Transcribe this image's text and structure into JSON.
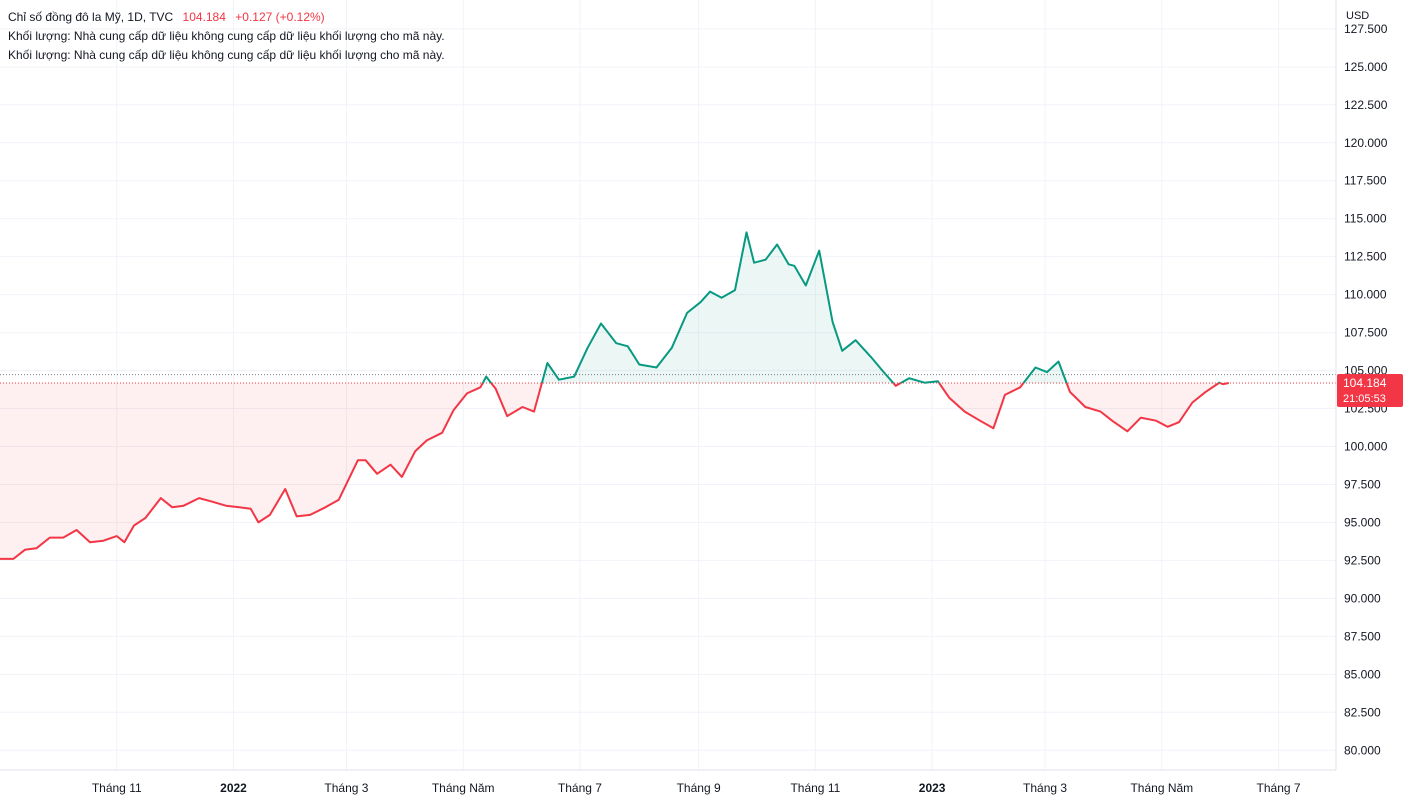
{
  "legend": {
    "symbol_line": "Chỉ số đồng đô la Mỹ, 1D, TVC",
    "last_price": "104.184",
    "change": "+0.127 (+0.12%)",
    "volume_notice_1": "Khối lượng: Nhà cung cấp dữ liệu không cung cấp dữ liệu khối lượng cho mã này.",
    "volume_notice_2": "Khối lượng: Nhà cung cấp dữ liệu không cung cấp dữ liệu khối lượng cho mã này."
  },
  "price_badge": {
    "price": "104.184",
    "countdown": "21:05:53"
  },
  "colors": {
    "up": "#089981",
    "down": "#f23645",
    "grid": "#f0f3fa",
    "badge": "#f23645"
  },
  "chart_data": {
    "type": "area",
    "currency_label": "USD",
    "baseline": 104.184,
    "ylim": [
      78.7,
      129.4
    ],
    "y_ticks": [
      "127.500",
      "125.000",
      "122.500",
      "120.000",
      "117.500",
      "115.000",
      "112.500",
      "110.000",
      "107.500",
      "105.000",
      "102.500",
      "100.000",
      "97.500",
      "95.000",
      "92.500",
      "90.000",
      "87.500",
      "85.000",
      "82.500",
      "80.000"
    ],
    "x_ticks": [
      {
        "label": "Tháng 11",
        "date": "2021-11-01",
        "bold": false
      },
      {
        "label": "2022",
        "date": "2022-01-01",
        "bold": true
      },
      {
        "label": "Tháng 3",
        "date": "2022-03-01",
        "bold": false
      },
      {
        "label": "Tháng Năm",
        "date": "2022-05-01",
        "bold": false
      },
      {
        "label": "Tháng 7",
        "date": "2022-07-01",
        "bold": false
      },
      {
        "label": "Tháng 9",
        "date": "2022-09-01",
        "bold": false
      },
      {
        "label": "Tháng 11",
        "date": "2022-11-01",
        "bold": false
      },
      {
        "label": "2023",
        "date": "2023-01-01",
        "bold": true
      },
      {
        "label": "Tháng 3",
        "date": "2023-03-01",
        "bold": false
      },
      {
        "label": "Tháng Năm",
        "date": "2023-05-01",
        "bold": false
      },
      {
        "label": "Tháng 7",
        "date": "2023-07-01",
        "bold": false
      }
    ],
    "series": [
      {
        "points": [
          [
            "2021-09-01",
            92.6
          ],
          [
            "2021-09-08",
            92.6
          ],
          [
            "2021-09-14",
            93.2
          ],
          [
            "2021-09-20",
            93.3
          ],
          [
            "2021-09-27",
            94.0
          ],
          [
            "2021-10-04",
            94.0
          ],
          [
            "2021-10-11",
            94.5
          ],
          [
            "2021-10-18",
            93.7
          ],
          [
            "2021-10-25",
            93.8
          ],
          [
            "2021-11-01",
            94.1
          ],
          [
            "2021-11-05",
            93.7
          ],
          [
            "2021-11-10",
            94.8
          ],
          [
            "2021-11-16",
            95.3
          ],
          [
            "2021-11-24",
            96.6
          ],
          [
            "2021-11-30",
            96.0
          ],
          [
            "2021-12-06",
            96.1
          ],
          [
            "2021-12-14",
            96.6
          ],
          [
            "2021-12-20",
            96.4
          ],
          [
            "2021-12-28",
            96.1
          ],
          [
            "2022-01-04",
            96.0
          ],
          [
            "2022-01-10",
            95.9
          ],
          [
            "2022-01-14",
            95.0
          ],
          [
            "2022-01-20",
            95.5
          ],
          [
            "2022-01-28",
            97.2
          ],
          [
            "2022-02-03",
            95.4
          ],
          [
            "2022-02-10",
            95.5
          ],
          [
            "2022-02-18",
            96.0
          ],
          [
            "2022-02-25",
            96.5
          ],
          [
            "2022-03-07",
            99.1
          ],
          [
            "2022-03-11",
            99.1
          ],
          [
            "2022-03-17",
            98.2
          ],
          [
            "2022-03-24",
            98.8
          ],
          [
            "2022-03-30",
            98.0
          ],
          [
            "2022-04-06",
            99.7
          ],
          [
            "2022-04-12",
            100.4
          ],
          [
            "2022-04-20",
            100.9
          ],
          [
            "2022-04-26",
            102.4
          ],
          [
            "2022-05-03",
            103.5
          ],
          [
            "2022-05-10",
            103.9
          ],
          [
            "2022-05-13",
            104.6
          ],
          [
            "2022-05-18",
            103.8
          ],
          [
            "2022-05-24",
            102.0
          ],
          [
            "2022-06-01",
            102.6
          ],
          [
            "2022-06-07",
            102.3
          ],
          [
            "2022-06-14",
            105.5
          ],
          [
            "2022-06-20",
            104.4
          ],
          [
            "2022-06-28",
            104.6
          ],
          [
            "2022-07-05",
            106.5
          ],
          [
            "2022-07-12",
            108.1
          ],
          [
            "2022-07-20",
            106.8
          ],
          [
            "2022-07-26",
            106.6
          ],
          [
            "2022-08-01",
            105.4
          ],
          [
            "2022-08-10",
            105.2
          ],
          [
            "2022-08-18",
            106.5
          ],
          [
            "2022-08-26",
            108.8
          ],
          [
            "2022-09-02",
            109.5
          ],
          [
            "2022-09-07",
            110.2
          ],
          [
            "2022-09-13",
            109.8
          ],
          [
            "2022-09-20",
            110.3
          ],
          [
            "2022-09-26",
            114.1
          ],
          [
            "2022-09-30",
            112.1
          ],
          [
            "2022-10-06",
            112.3
          ],
          [
            "2022-10-12",
            113.3
          ],
          [
            "2022-10-18",
            112.0
          ],
          [
            "2022-10-21",
            111.9
          ],
          [
            "2022-10-27",
            110.6
          ],
          [
            "2022-11-03",
            112.9
          ],
          [
            "2022-11-10",
            108.2
          ],
          [
            "2022-11-15",
            106.3
          ],
          [
            "2022-11-22",
            107.0
          ],
          [
            "2022-11-30",
            105.9
          ],
          [
            "2022-12-06",
            105.0
          ],
          [
            "2022-12-13",
            104.0
          ],
          [
            "2022-12-20",
            104.5
          ],
          [
            "2022-12-28",
            104.2
          ],
          [
            "2023-01-04",
            104.3
          ],
          [
            "2023-01-10",
            103.2
          ],
          [
            "2023-01-18",
            102.3
          ],
          [
            "2023-01-26",
            101.7
          ],
          [
            "2023-02-02",
            101.2
          ],
          [
            "2023-02-08",
            103.4
          ],
          [
            "2023-02-16",
            103.9
          ],
          [
            "2023-02-24",
            105.2
          ],
          [
            "2023-03-02",
            104.9
          ],
          [
            "2023-03-08",
            105.6
          ],
          [
            "2023-03-14",
            103.6
          ],
          [
            "2023-03-22",
            102.6
          ],
          [
            "2023-03-30",
            102.3
          ],
          [
            "2023-04-05",
            101.7
          ],
          [
            "2023-04-13",
            101.0
          ],
          [
            "2023-04-20",
            101.9
          ],
          [
            "2023-04-28",
            101.7
          ],
          [
            "2023-05-04",
            101.3
          ],
          [
            "2023-05-10",
            101.6
          ],
          [
            "2023-05-17",
            102.9
          ],
          [
            "2023-05-24",
            103.6
          ],
          [
            "2023-05-31",
            104.2
          ],
          [
            "2023-06-02",
            104.1
          ],
          [
            "2023-06-05",
            104.184
          ]
        ]
      }
    ]
  }
}
